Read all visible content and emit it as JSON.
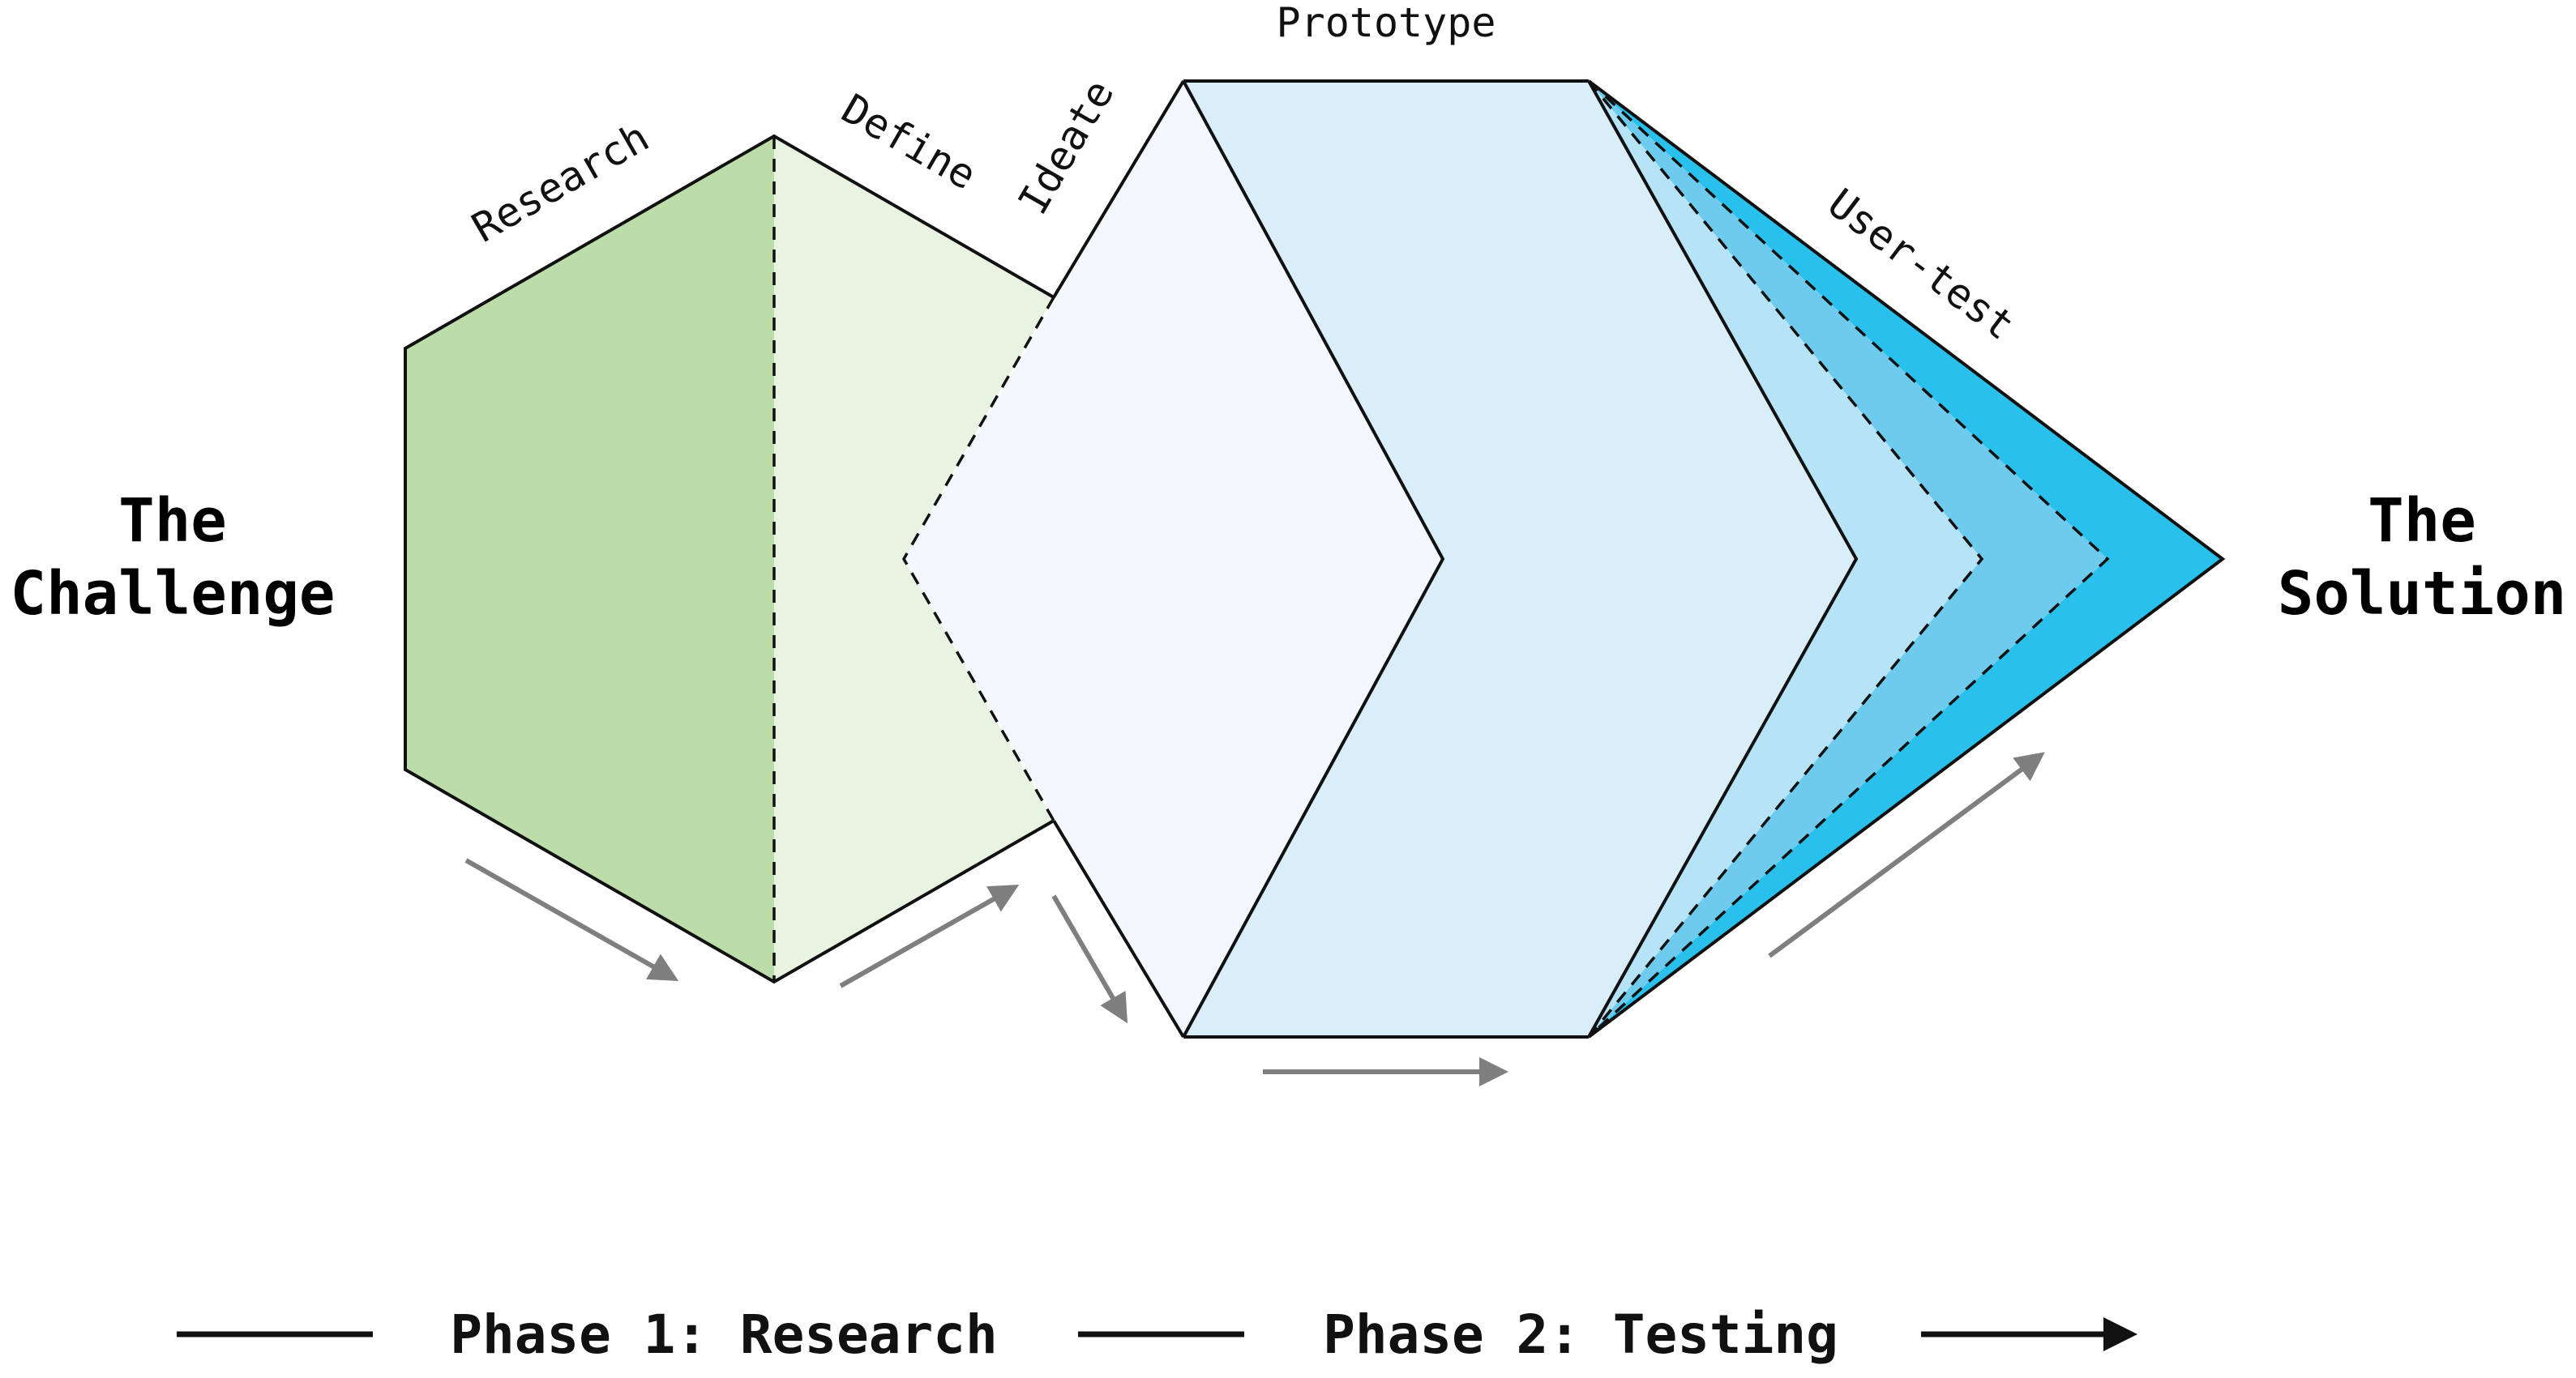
{
  "diagram": {
    "start_label": [
      "The",
      "Challenge"
    ],
    "end_label": [
      "The",
      "Solution"
    ],
    "stages": {
      "research": "Research",
      "define": "Define",
      "ideate": "Ideate",
      "prototype": "Prototype",
      "user_test": "User-test"
    },
    "phases": {
      "phase1": "Phase 1: Research",
      "phase2": "Phase 2: Testing"
    },
    "colors": {
      "research_fill": "#bcdda9",
      "define_fill": "#e8f3e2",
      "ideate_fill": "#f2f8fd",
      "prototype_fill": "#d9eef9",
      "usertest_light": "#b6e3f6",
      "usertest_mid": "#6ecbee",
      "usertest_dark": "#29c1ec",
      "flow_arrow": "#7f7f7f",
      "outline": "#111111"
    }
  }
}
